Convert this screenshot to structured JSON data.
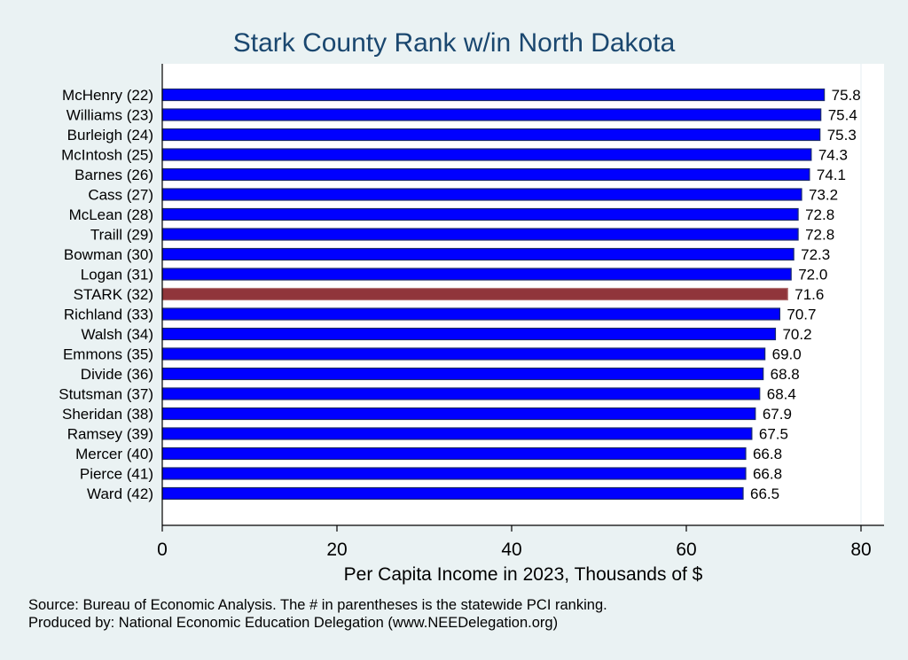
{
  "chart_data": {
    "type": "bar",
    "orientation": "horizontal",
    "title": "Stark County Rank w/in North Dakota",
    "xlabel": "Per Capita Income in 2023, Thousands of $",
    "ylabel": "",
    "xlim": [
      0,
      80
    ],
    "xticks": [
      0,
      20,
      40,
      60,
      80
    ],
    "categories": [
      "McHenry (22)",
      "Williams (23)",
      "Burleigh (24)",
      "McIntosh (25)",
      "Barnes (26)",
      "Cass (27)",
      "McLean (28)",
      "Traill (29)",
      "Bowman (30)",
      "Logan (31)",
      "STARK (32)",
      "Richland (33)",
      "Walsh (34)",
      "Emmons (35)",
      "Divide (36)",
      "Stutsman (37)",
      "Sheridan (38)",
      "Ramsey (39)",
      "Mercer (40)",
      "Pierce (41)",
      "Ward (42)"
    ],
    "values": [
      75.8,
      75.4,
      75.3,
      74.3,
      74.1,
      73.2,
      72.8,
      72.8,
      72.3,
      72.0,
      71.6,
      70.7,
      70.2,
      69.0,
      68.8,
      68.4,
      67.9,
      67.5,
      66.8,
      66.8,
      66.5
    ],
    "value_labels": [
      "75.8",
      "75.4",
      "75.3",
      "74.3",
      "74.1",
      "73.2",
      "72.8",
      "72.8",
      "72.3",
      "72.0",
      "71.6",
      "70.7",
      "70.2",
      "69.0",
      "68.8",
      "68.4",
      "67.9",
      "67.5",
      "66.8",
      "66.8",
      "66.5"
    ],
    "highlight_category": "STARK (32)",
    "colors": {
      "bar": "#0000ff",
      "bar_edge": "#1a2a6c",
      "highlight": "#90353b",
      "highlight_edge": "#b07070",
      "background": "#eaf2f3",
      "plot": "#ffffff",
      "title": "#1a476f"
    },
    "grid": false,
    "notes": [
      "Source: Bureau of Economic Analysis. The # in parentheses is the statewide PCI ranking.",
      "Produced by: National Economic Education Delegation (www.NEEDelegation.org)"
    ]
  }
}
